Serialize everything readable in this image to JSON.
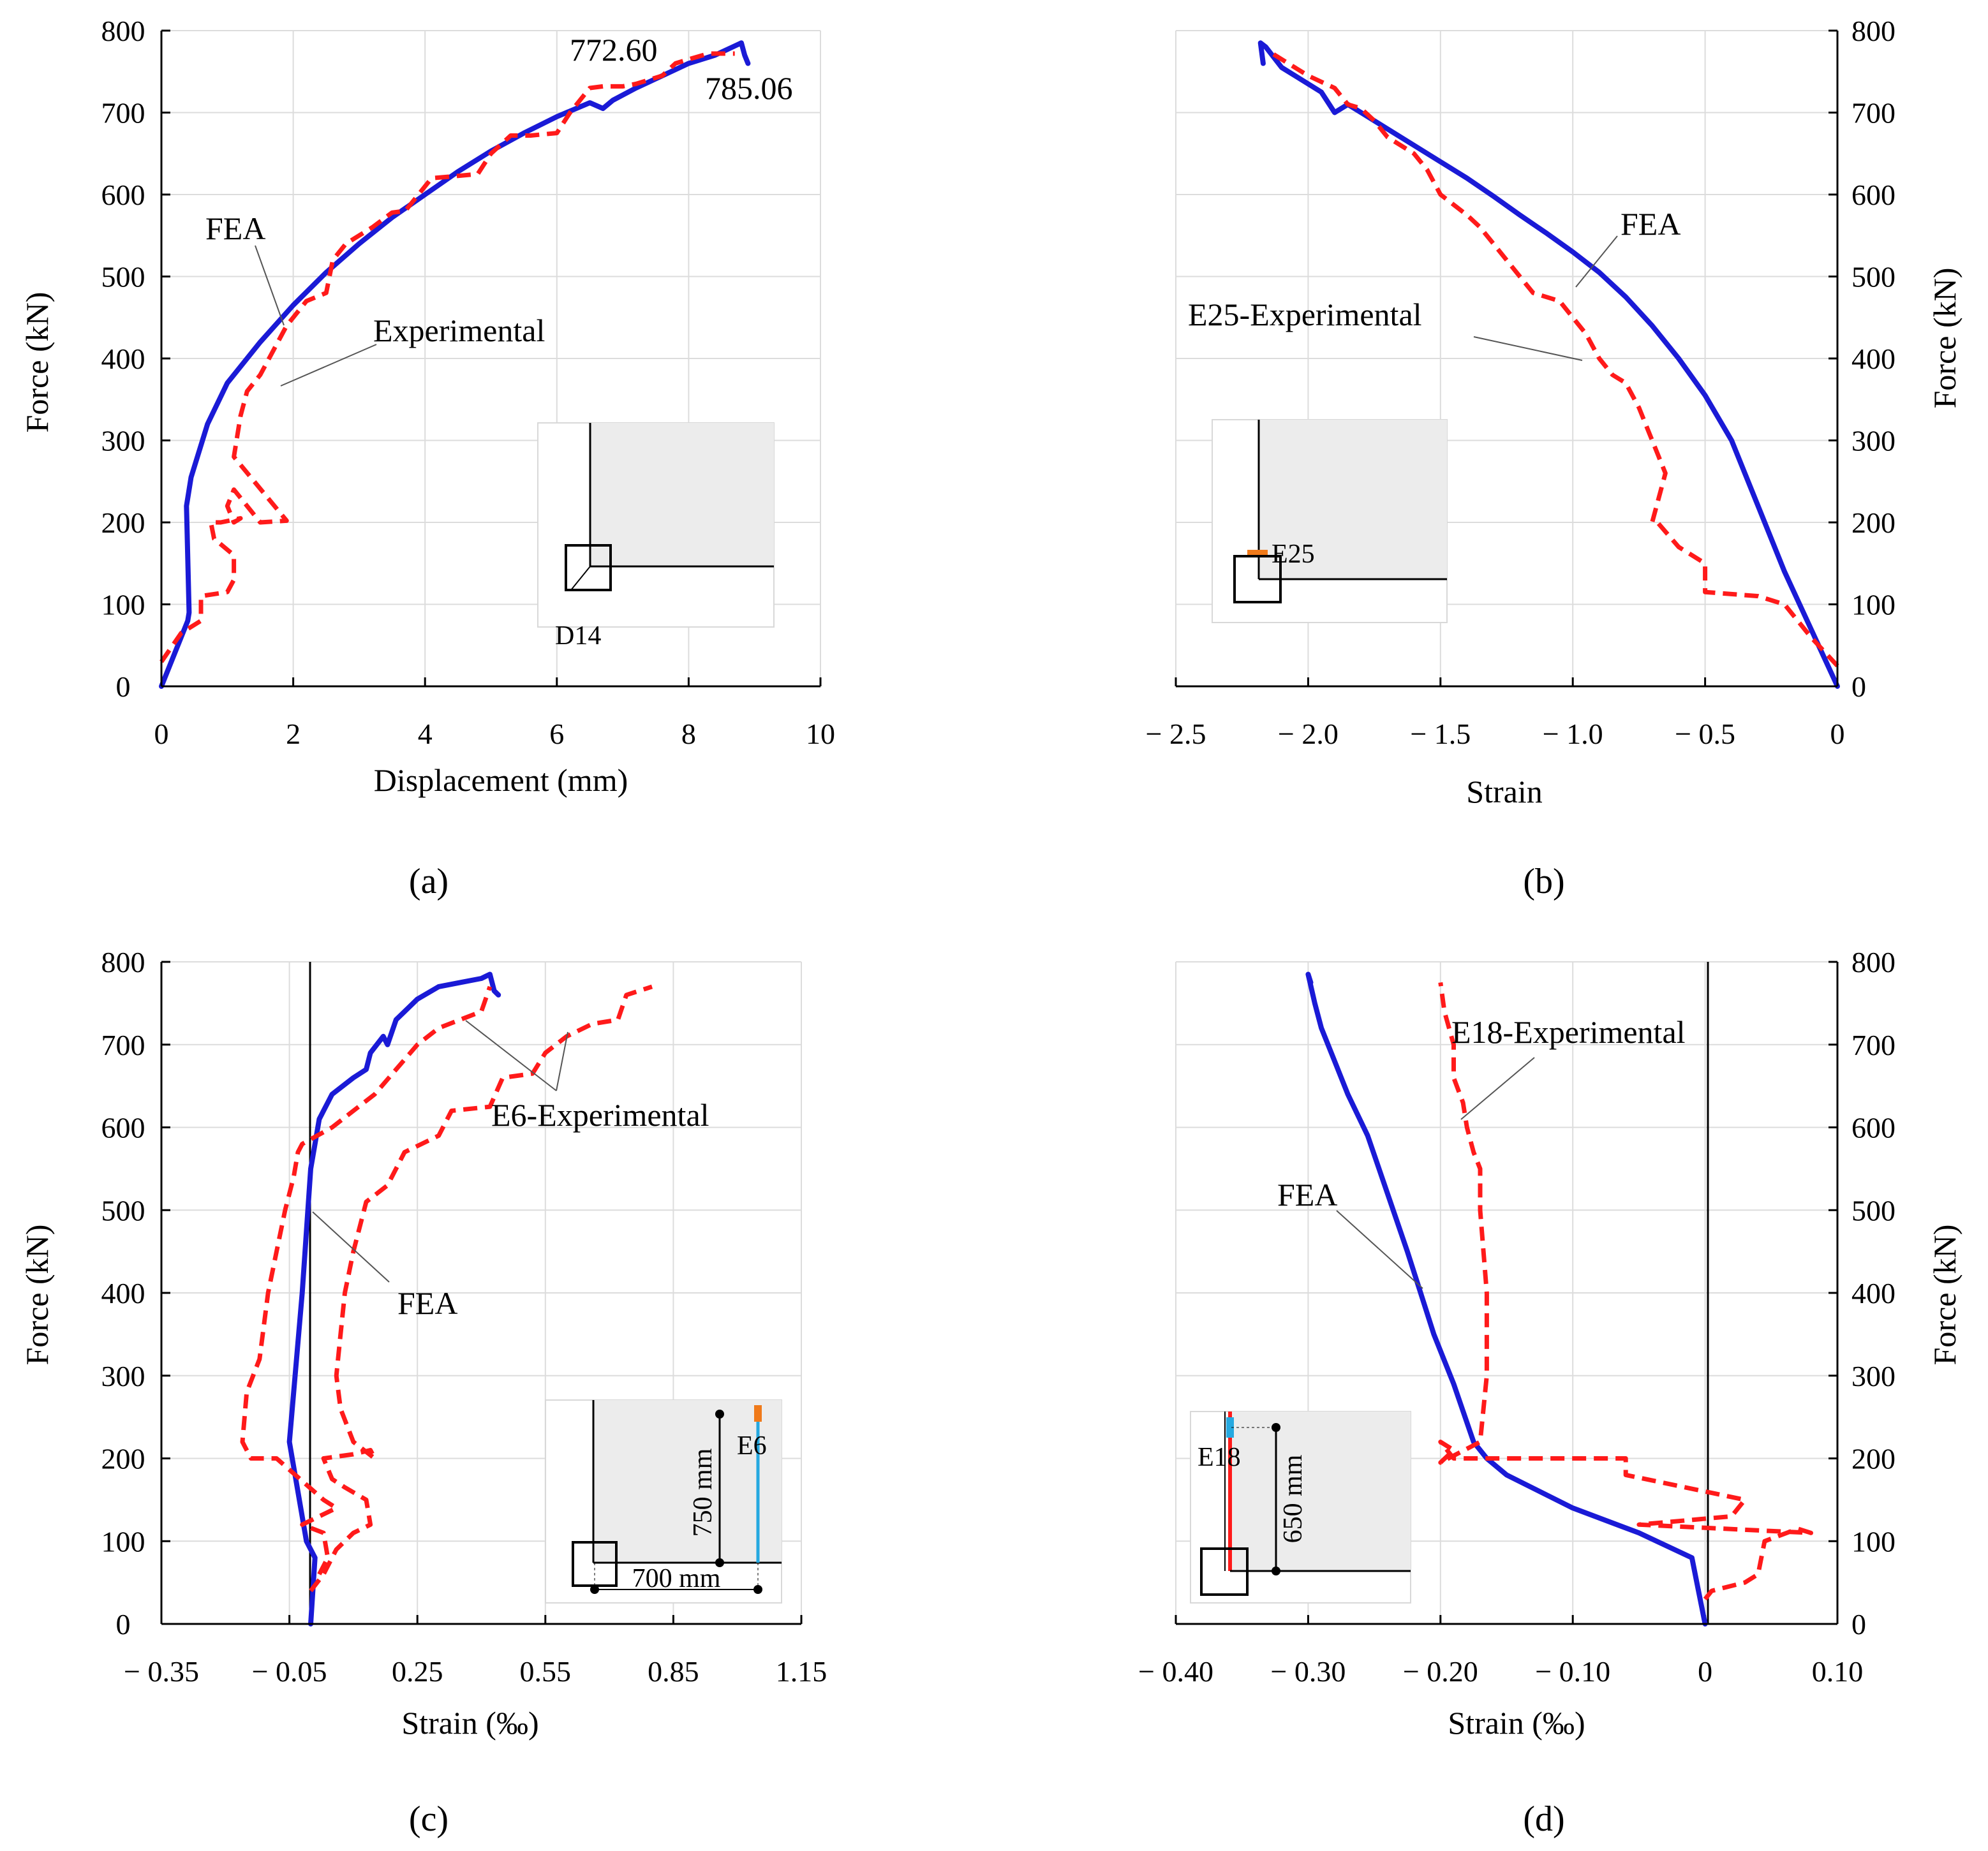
{
  "colors": {
    "fea": "#1a1ad6",
    "experimental": "#ff1a1a",
    "grid": "#dcdcdc",
    "gauge_orange": "#f07a1a",
    "gauge_cyan": "#26a9e0"
  },
  "chart_data": [
    {
      "id": "a",
      "type": "line",
      "panel_label": "(a)",
      "title": "",
      "xlabel": "Displacement (mm)",
      "ylabel": "Force (kN)",
      "xlim": [
        0,
        10
      ],
      "ylim": [
        0,
        800
      ],
      "xticks": [
        0,
        2,
        4,
        6,
        8,
        10
      ],
      "xtick_labels": [
        "0",
        "2",
        "4",
        "6",
        "8",
        "10"
      ],
      "yticks": [
        0,
        100,
        200,
        300,
        400,
        500,
        600,
        700,
        800
      ],
      "ytick_labels": [
        "0",
        "100",
        "200",
        "300",
        "400",
        "500",
        "600",
        "700",
        "800"
      ],
      "y_axis_side": "left",
      "series": [
        {
          "name": "FEA",
          "style": "solid",
          "x": [
            0,
            0.4,
            0.42,
            0.38,
            0.45,
            0.7,
            1.0,
            1.5,
            2.0,
            2.5,
            3.0,
            3.5,
            4.0,
            4.5,
            5.0,
            5.5,
            6.0,
            6.5,
            6.7,
            6.85,
            7.2,
            7.6,
            8.0,
            8.4,
            8.8,
            8.85,
            8.9
          ],
          "y": [
            0,
            80,
            90,
            220,
            255,
            320,
            370,
            420,
            465,
            505,
            540,
            572,
            600,
            628,
            653,
            675,
            695,
            712,
            705,
            715,
            730,
            745,
            760,
            770,
            785,
            770,
            760
          ]
        },
        {
          "name": "Experimental",
          "style": "dashed",
          "x": [
            0,
            0.3,
            0.6,
            0.6,
            1.0,
            1.1,
            1.1,
            0.8,
            0.75,
            0.9,
            1.2,
            1.1,
            1.0,
            1.1,
            1.5,
            1.9,
            1.1,
            1.2,
            1.3,
            1.5,
            1.7,
            1.9,
            2.1,
            2.2,
            2.5,
            2.6,
            2.8,
            3.2,
            3.5,
            3.7,
            3.9,
            4.1,
            4.4,
            4.8,
            5.0,
            5.3,
            5.6,
            6.0,
            6.2,
            6.5,
            6.7,
            7.0,
            7.2,
            7.6,
            7.8,
            8.0,
            8.3,
            8.5,
            8.7
          ],
          "y": [
            30,
            65,
            80,
            110,
            115,
            130,
            160,
            180,
            200,
            200,
            205,
            200,
            220,
            240,
            200,
            202,
            280,
            330,
            360,
            380,
            410,
            440,
            460,
            470,
            480,
            520,
            540,
            560,
            578,
            580,
            600,
            620,
            622,
            625,
            650,
            672,
            672,
            675,
            700,
            730,
            732,
            732,
            735,
            745,
            760,
            765,
            772,
            772,
            772
          ]
        }
      ],
      "annotations": [
        {
          "text": "FEA"
        },
        {
          "text": "Experimental"
        },
        {
          "text": "772.60"
        },
        {
          "text": "785.06"
        },
        {
          "text": "D14"
        }
      ]
    },
    {
      "id": "b",
      "type": "line",
      "panel_label": "(b)",
      "title": "",
      "xlabel": "Strain",
      "ylabel": "Force (kN)",
      "xlim": [
        -2.5,
        0
      ],
      "ylim": [
        0,
        800
      ],
      "xticks": [
        -2.5,
        -2.0,
        -1.5,
        -1.0,
        -0.5,
        0
      ],
      "xtick_labels": [
        "− 2.5",
        "− 2.0",
        "− 1.5",
        "− 1.0",
        "− 0.5",
        "0"
      ],
      "yticks": [
        0,
        100,
        200,
        300,
        400,
        500,
        600,
        700,
        800
      ],
      "ytick_labels": [
        "0",
        "100",
        "200",
        "300",
        "400",
        "500",
        "600",
        "700",
        "800"
      ],
      "y_axis_side": "right",
      "series": [
        {
          "name": "FEA",
          "style": "solid",
          "x": [
            0,
            -0.1,
            -0.2,
            -0.3,
            -0.4,
            -0.5,
            -0.6,
            -0.7,
            -0.8,
            -0.9,
            -1.0,
            -1.1,
            -1.2,
            -1.3,
            -1.4,
            -1.5,
            -1.6,
            -1.7,
            -1.8,
            -1.85,
            -1.9,
            -1.95,
            -2.0,
            -2.1,
            -2.16,
            -2.18,
            -2.17
          ],
          "y": [
            0,
            70,
            140,
            220,
            300,
            355,
            400,
            440,
            475,
            505,
            530,
            553,
            575,
            598,
            620,
            640,
            660,
            680,
            700,
            710,
            700,
            725,
            735,
            755,
            780,
            785,
            760
          ]
        },
        {
          "name": "E25-Experimental",
          "style": "dashed",
          "x": [
            0,
            -0.1,
            -0.2,
            -0.3,
            -0.5,
            -0.5,
            -0.6,
            -0.68,
            -0.7,
            -0.65,
            -0.7,
            -0.75,
            -0.8,
            -0.85,
            -0.9,
            -0.95,
            -1.0,
            -1.05,
            -1.15,
            -1.2,
            -1.25,
            -1.3,
            -1.35,
            -1.4,
            -1.5,
            -1.55,
            -1.6,
            -1.7,
            -1.75,
            -1.8,
            -1.85,
            -1.9,
            -2.0,
            -2.1,
            -2.15
          ],
          "y": [
            25,
            60,
            100,
            110,
            115,
            150,
            170,
            200,
            200,
            260,
            300,
            340,
            370,
            380,
            400,
            430,
            450,
            470,
            480,
            500,
            520,
            540,
            560,
            575,
            600,
            630,
            650,
            670,
            690,
            705,
            710,
            730,
            745,
            765,
            775
          ]
        }
      ],
      "annotations": [
        {
          "text": "FEA"
        },
        {
          "text": "E25-Experimental"
        },
        {
          "text": "E25"
        }
      ]
    },
    {
      "id": "c",
      "type": "line",
      "panel_label": "(c)",
      "title": "",
      "xlabel": "Strain (‰)",
      "ylabel": "Force (kN)",
      "xlim": [
        -0.35,
        1.15
      ],
      "ylim": [
        0,
        800
      ],
      "xticks": [
        -0.35,
        -0.05,
        0.25,
        0.55,
        0.85,
        1.15
      ],
      "xtick_labels": [
        "− 0.35",
        "− 0.05",
        "0.25",
        "0.55",
        "0.85",
        "1.15"
      ],
      "yticks": [
        0,
        100,
        200,
        300,
        400,
        500,
        600,
        700,
        800
      ],
      "ytick_labels": [
        "0",
        "100",
        "200",
        "300",
        "400",
        "500",
        "600",
        "700",
        "800"
      ],
      "y_axis_side": "left",
      "series": [
        {
          "name": "FEA",
          "style": "solid",
          "x": [
            0.0,
            0.01,
            -0.01,
            -0.05,
            -0.02,
            0.0,
            0.02,
            0.05,
            0.1,
            0.13,
            0.14,
            0.17,
            0.18,
            0.2,
            0.25,
            0.3,
            0.35,
            0.4,
            0.42,
            0.43,
            0.44
          ],
          "y": [
            0,
            80,
            100,
            220,
            400,
            550,
            610,
            640,
            660,
            670,
            690,
            710,
            700,
            730,
            755,
            770,
            775,
            780,
            785,
            765,
            760
          ]
        },
        {
          "name": "E6-Experimental (a)",
          "style": "dashed",
          "x": [
            0.02,
            0.04,
            0.03,
            -0.02,
            0.06,
            0.03,
            -0.08,
            -0.14,
            -0.16,
            -0.15,
            -0.12,
            -0.1,
            -0.08,
            -0.06,
            -0.04,
            -0.03,
            -0.02,
            0.05,
            0.1,
            0.15,
            0.2,
            0.25,
            0.3,
            0.35,
            0.4,
            0.42
          ],
          "y": [
            60,
            80,
            110,
            120,
            140,
            150,
            200,
            200,
            220,
            280,
            320,
            400,
            450,
            500,
            540,
            570,
            580,
            600,
            620,
            640,
            670,
            700,
            720,
            730,
            740,
            770
          ]
        },
        {
          "name": "E6-Experimental (b)",
          "style": "dashed",
          "x": [
            0.0,
            0.03,
            0.06,
            0.1,
            0.14,
            0.13,
            0.08,
            0.05,
            0.03,
            0.1,
            0.14,
            0.15,
            0.1,
            0.07,
            0.06,
            0.07,
            0.08,
            0.1,
            0.13,
            0.18,
            0.22,
            0.3,
            0.33,
            0.42,
            0.45,
            0.52,
            0.55,
            0.6,
            0.66,
            0.72,
            0.74,
            0.8
          ],
          "y": [
            40,
            60,
            90,
            110,
            120,
            150,
            165,
            175,
            200,
            205,
            210,
            200,
            220,
            260,
            300,
            350,
            400,
            450,
            510,
            530,
            570,
            590,
            620,
            625,
            660,
            665,
            690,
            710,
            725,
            730,
            760,
            770
          ]
        }
      ],
      "annotations": [
        {
          "text": "E6-Experimental"
        },
        {
          "text": "FEA"
        },
        {
          "text": "E6"
        },
        {
          "text": "750 mm"
        },
        {
          "text": "700 mm"
        }
      ]
    },
    {
      "id": "d",
      "type": "line",
      "panel_label": "(d)",
      "title": "",
      "xlabel": "Strain (‰)",
      "ylabel": "Force (kN)",
      "xlim": [
        -0.4,
        0.1
      ],
      "ylim": [
        0,
        800
      ],
      "xticks": [
        -0.4,
        -0.3,
        -0.2,
        -0.1,
        0,
        0.1
      ],
      "xtick_labels": [
        "− 0.40",
        "− 0.30",
        "− 0.20",
        "− 0.10",
        "0",
        "0.10"
      ],
      "yticks": [
        0,
        100,
        200,
        300,
        400,
        500,
        600,
        700,
        800
      ],
      "ytick_labels": [
        "0",
        "100",
        "200",
        "300",
        "400",
        "500",
        "600",
        "700",
        "800"
      ],
      "y_axis_side": "right",
      "series": [
        {
          "name": "FEA",
          "style": "solid",
          "x": [
            0,
            -0.005,
            -0.01,
            -0.05,
            -0.1,
            -0.15,
            -0.165,
            -0.175,
            -0.19,
            -0.205,
            -0.215,
            -0.225,
            -0.24,
            -0.255,
            -0.27,
            -0.28,
            -0.29,
            -0.295,
            -0.3,
            -0.298
          ],
          "y": [
            0,
            40,
            80,
            110,
            140,
            180,
            200,
            220,
            290,
            350,
            400,
            450,
            520,
            590,
            640,
            680,
            720,
            750,
            785,
            775
          ]
        },
        {
          "name": "E18-Experimental",
          "style": "dashed",
          "x": [
            0.0,
            0.005,
            0.03,
            0.04,
            0.045,
            0.07,
            0.08,
            -0.05,
            0.02,
            0.03,
            -0.06,
            -0.06,
            -0.19,
            -0.2,
            -0.19,
            -0.2,
            -0.17,
            -0.165,
            -0.165,
            -0.17,
            -0.17,
            -0.175,
            -0.18,
            -0.183,
            -0.19,
            -0.19,
            -0.197,
            -0.2
          ],
          "y": [
            30,
            40,
            50,
            60,
            100,
            115,
            110,
            120,
            130,
            150,
            180,
            200,
            200,
            220,
            210,
            195,
            220,
            300,
            400,
            500,
            550,
            570,
            600,
            630,
            660,
            700,
            740,
            775
          ]
        }
      ],
      "annotations": [
        {
          "text": "E18-Experimental"
        },
        {
          "text": "FEA"
        },
        {
          "text": "E18"
        },
        {
          "text": "650 mm"
        }
      ]
    }
  ]
}
